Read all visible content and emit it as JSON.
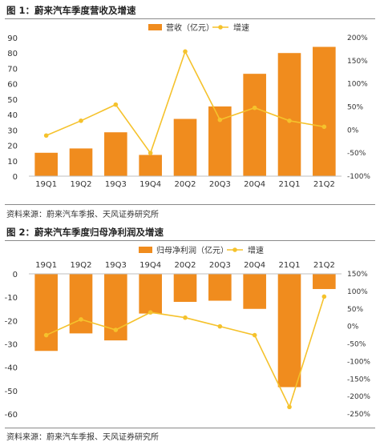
{
  "fig1": {
    "title": "图 1：蔚来汽车季度营收及增速",
    "source": "资料来源：蔚来汽车季报、天风证券研究所"
  },
  "fig2": {
    "title": "图 2：蔚来汽车季度归母净利润及增速",
    "source": "资料来源：蔚来汽车季报、天风证券研究所"
  },
  "colors": {
    "bar": "#F08C1E",
    "line": "#F5C22C"
  },
  "chart_data": [
    {
      "type": "bar",
      "title": "蔚来汽车季度营收及增速",
      "categories": [
        "19Q1",
        "19Q2",
        "19Q3",
        "19Q4",
        "20Q2",
        "20Q3",
        "20Q4",
        "21Q1",
        "21Q2"
      ],
      "series": [
        {
          "name": "营收（亿元）",
          "type": "bar",
          "axis": "left",
          "values": [
            15.2,
            18.0,
            28.5,
            13.8,
            37.2,
            45.3,
            66.5,
            80.0,
            84.0
          ]
        },
        {
          "name": "增速",
          "type": "line",
          "axis": "right",
          "values": [
            -12,
            20,
            55,
            -50,
            170,
            22,
            48,
            20,
            7
          ]
        }
      ],
      "y_left": {
        "min": 0,
        "max": 90,
        "ticks": [
          "0",
          "10",
          "20",
          "30",
          "40",
          "50",
          "60",
          "70",
          "80",
          "90"
        ]
      },
      "y_right": {
        "min": -100,
        "max": 200,
        "ticks": [
          "-100%",
          "-50%",
          "0%",
          "50%",
          "100%",
          "150%",
          "200%"
        ]
      },
      "legend": "top-right"
    },
    {
      "type": "bar",
      "title": "蔚来汽车季度归母净利润及增速",
      "categories": [
        "19Q1",
        "19Q2",
        "19Q3",
        "19Q4",
        "20Q2",
        "20Q3",
        "20Q4",
        "21Q1",
        "21Q2"
      ],
      "series": [
        {
          "name": "归母净利润（亿元）",
          "type": "bar",
          "axis": "left",
          "values": [
            -33,
            -25.5,
            -28.5,
            -17,
            -12,
            -11.5,
            -15,
            -48.5,
            -6.5
          ]
        },
        {
          "name": "增速",
          "type": "line",
          "axis": "right",
          "values": [
            -25,
            20,
            -10,
            40,
            25,
            0,
            -25,
            -230,
            85
          ]
        }
      ],
      "y_left": {
        "min": -60,
        "max": 0,
        "ticks": [
          "-60",
          "-50",
          "-40",
          "-30",
          "-20",
          "-10",
          "0"
        ]
      },
      "y_right": {
        "min": -250,
        "max": 150,
        "ticks": [
          "-250%",
          "-200%",
          "-150%",
          "-100%",
          "-50%",
          "0%",
          "50%",
          "100%",
          "150%"
        ]
      },
      "legend": "top-right"
    }
  ]
}
